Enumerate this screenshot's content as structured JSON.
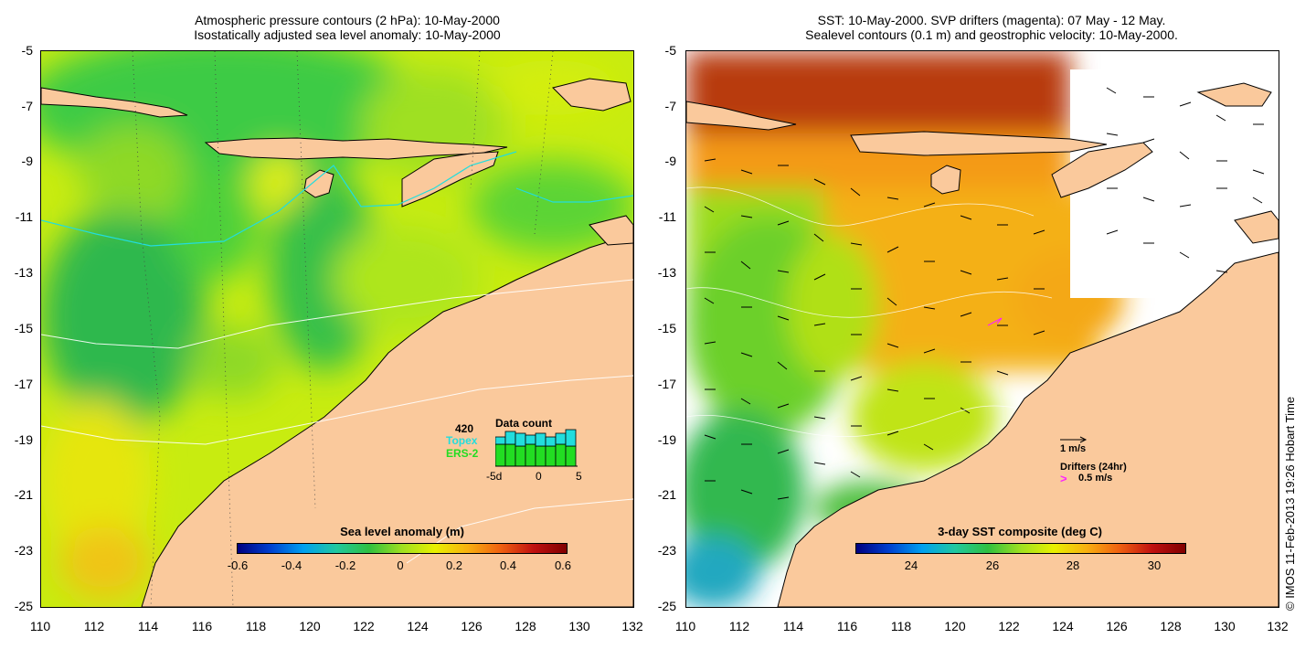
{
  "left_panel": {
    "title_line1": "Atmospheric pressure contours (2 hPa): 10-May-2000",
    "title_line2": "Isostatically adjusted sea level anomaly: 10-May-2000",
    "colorbar_label": "Sea level anomaly (m)",
    "colorbar_ticks": [
      "-0.6",
      "-0.4",
      "-0.2",
      "0",
      "0.2",
      "0.4",
      "0.6"
    ],
    "inset": {
      "count": "420",
      "topex_label": "Topex",
      "ers_label": "ERS-2",
      "title": "Data count",
      "xticks": [
        "-5d",
        "0",
        "5"
      ],
      "topex_color": "#22dddd",
      "ers_color": "#22dd22"
    }
  },
  "right_panel": {
    "title_line1": "SST: 10-May-2000. SVP drifters (magenta): 07 May - 12 May.",
    "title_line2": "Sealevel contours (0.1 m) and geostrophic velocity: 10-May-2000.",
    "colorbar_label": "3-day SST composite (deg C)",
    "colorbar_ticks": [
      "24",
      "26",
      "28",
      "30"
    ],
    "velocity_label": "1 m/s",
    "drifters_label": "Drifters (24hr)",
    "drifter_speed_label": "0.5 m/s",
    "drifter_color": "#ff22ff"
  },
  "axes": {
    "y_ticks": [
      "-5",
      "-7",
      "-9",
      "-11",
      "-13",
      "-15",
      "-17",
      "-19",
      "-21",
      "-23",
      "-25"
    ],
    "x_ticks": [
      "110",
      "112",
      "114",
      "116",
      "118",
      "120",
      "122",
      "124",
      "126",
      "128",
      "130",
      "132"
    ]
  },
  "credit": "© IMOS 11-Feb-2013 19:26 Hobart Time",
  "colors": {
    "land": "#fac99c",
    "sea_green": "#4ccc3c",
    "sea_yellow": "#d6f000",
    "sst_orange": "#f4a020",
    "sst_red": "#b83a10"
  }
}
